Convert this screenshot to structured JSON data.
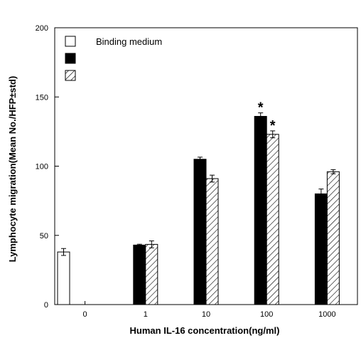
{
  "chart_data": {
    "type": "bar",
    "title": "",
    "xlabel": "Human IL-16 concentration(ng/ml)",
    "ylabel": "Lymphocyte migration(Mean No./HFP±std)",
    "ylim": [
      0,
      200
    ],
    "yticks": [
      0,
      50,
      100,
      150,
      200
    ],
    "grid": false,
    "legend_position": "top-left",
    "categories": [
      "0",
      "1",
      "10",
      "100",
      "1000"
    ],
    "series": [
      {
        "name": "Binding medium",
        "fill": "open",
        "color": "#ffffff",
        "values": [
          38,
          null,
          null,
          null,
          null
        ],
        "errors": [
          2.5,
          null,
          null,
          null,
          null
        ]
      },
      {
        "name": "",
        "fill": "solid",
        "color": "#000000",
        "values": [
          null,
          43,
          105,
          136,
          80
        ],
        "errors": [
          null,
          0.6,
          1.5,
          2.5,
          3.5
        ]
      },
      {
        "name": "",
        "fill": "hatched",
        "color": "#ffffff",
        "values": [
          null,
          43.5,
          91,
          123,
          96
        ],
        "errors": [
          null,
          2.5,
          2.5,
          2.5,
          1.5
        ]
      }
    ],
    "annotations": [
      {
        "text": "*",
        "category": "100",
        "series": 1
      },
      {
        "text": "*",
        "category": "100",
        "series": 2
      }
    ]
  }
}
